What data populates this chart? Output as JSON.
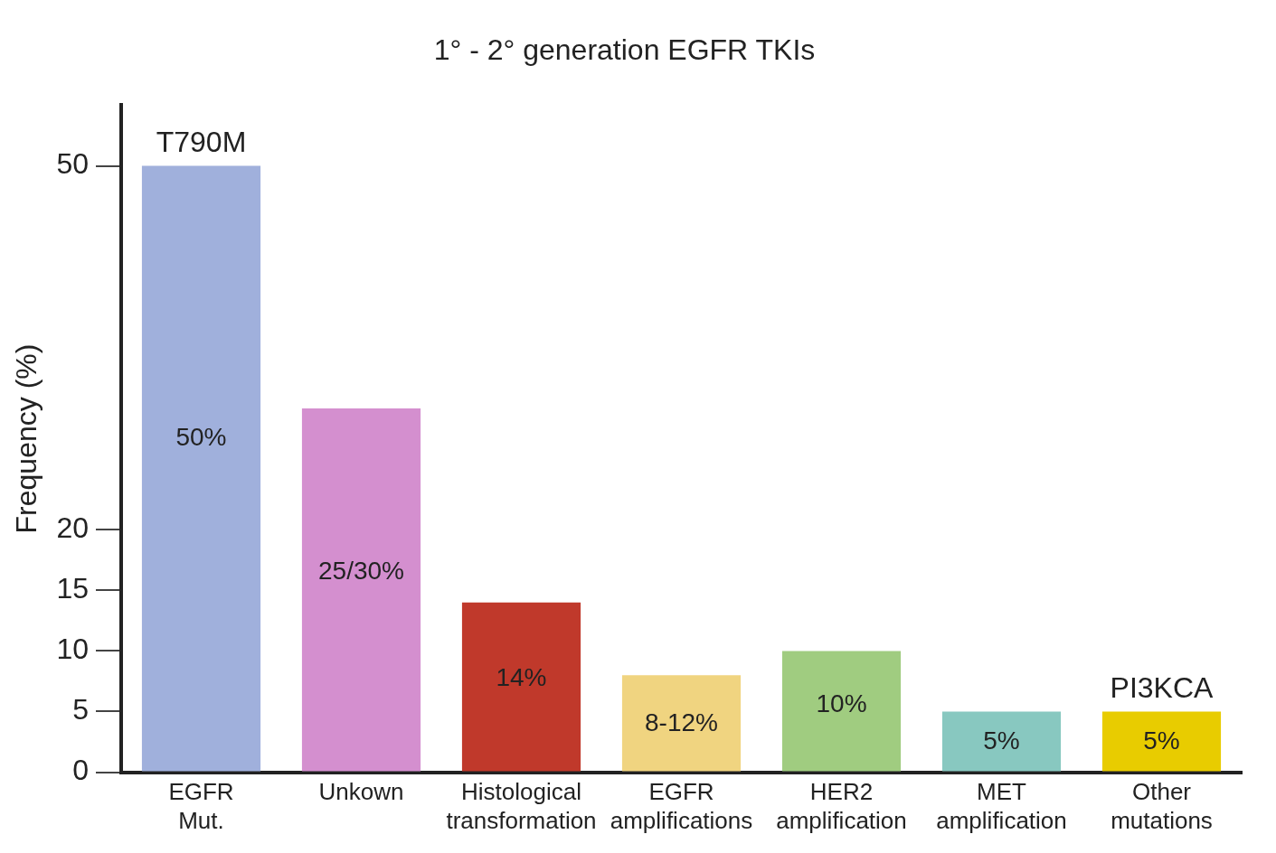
{
  "chart_data": {
    "type": "bar",
    "title": "1° - 2° generation EGFR TKIs",
    "ylabel": "Frequency (%)",
    "categories": [
      "EGFR Mut.",
      "Unkown",
      "Histological transformation",
      "EGFR amplifications",
      "HER2 amplification",
      "MET amplification",
      "Other mutations"
    ],
    "values": [
      50,
      30,
      14,
      8,
      10,
      5,
      5
    ],
    "value_labels": [
      "50%",
      "25/30%",
      "14%",
      "8-12%",
      "10%",
      "5%",
      "5%"
    ],
    "colors": [
      "#a0b0dc",
      "#d48fcf",
      "#c0392b",
      "#f0d480",
      "#a0cc80",
      "#88c8c0",
      "#e8cc00"
    ],
    "ylim": [
      0,
      55
    ],
    "yticks": [
      0,
      5,
      10,
      15,
      20,
      50
    ],
    "grid": false,
    "legend": false,
    "annotations": [
      {
        "text": "T790M",
        "x": "EGFR Mut.",
        "y": 50
      },
      {
        "text": "PI3KCA",
        "x": "Other mutations",
        "y": 5
      }
    ]
  }
}
